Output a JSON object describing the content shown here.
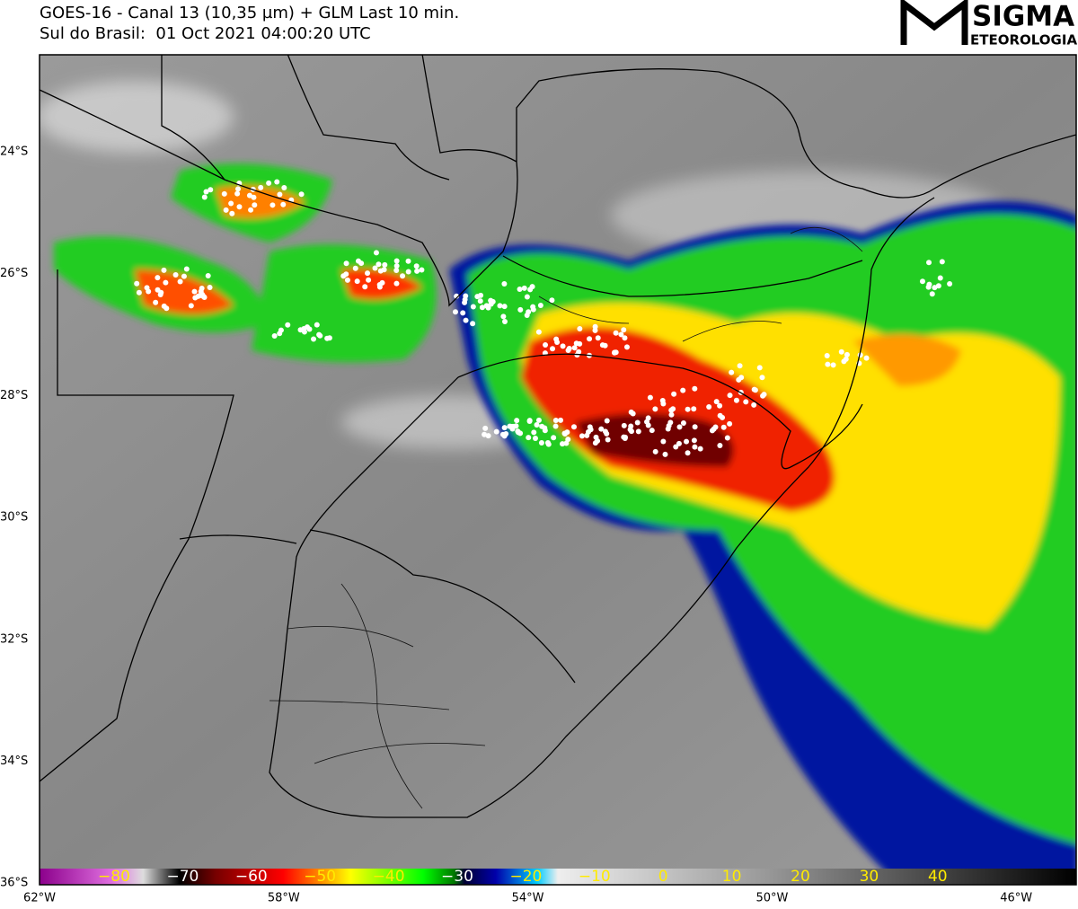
{
  "header": {
    "title": "GOES-16 - Canal 13 (10,35 µm) + GLM Last 10 min.",
    "subtitle": "Sul do Brasil:  01 Oct 2021 04:00:20 UTC"
  },
  "logo": {
    "name": "SIGMA",
    "tagline": "ETEOROLOGIA"
  },
  "latitude_labels": [
    "24°S",
    "26°S",
    "28°S",
    "30°S",
    "32°S",
    "34°S",
    "36°S"
  ],
  "longitude_labels": [
    "62°W",
    "58°W",
    "54°W",
    "50°W",
    "46°W"
  ],
  "colorbar": {
    "labels": [
      "−80",
      "−70",
      "−60",
      "−50",
      "−40",
      "−30",
      "−20",
      "−10",
      "0",
      "10",
      "20",
      "30",
      "40"
    ]
  }
}
